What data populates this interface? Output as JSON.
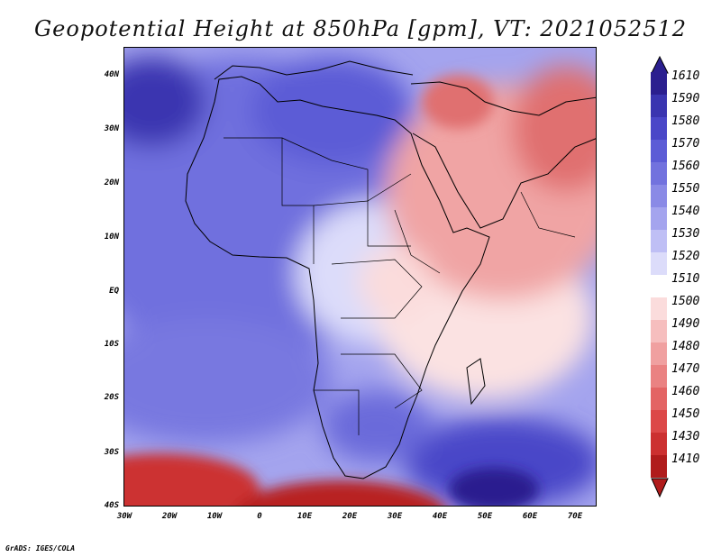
{
  "title": "Geopotential Height at 850hPa [gpm], VT: 2021052512",
  "footer": "GrADS: IGES/COLA",
  "map": {
    "lat_labels": [
      "40N",
      "30N",
      "20N",
      "10N",
      "EQ",
      "10S",
      "20S",
      "30S",
      "40S"
    ],
    "lon_labels": [
      "30W",
      "20W",
      "10W",
      "0",
      "10E",
      "20E",
      "30E",
      "40E",
      "50E",
      "60E",
      "70E"
    ],
    "domain": {
      "lon": [
        -30,
        75
      ],
      "lat": [
        -40,
        45
      ]
    }
  },
  "colorbar": {
    "labels": [
      "1610",
      "1590",
      "1580",
      "1570",
      "1560",
      "1550",
      "1540",
      "1530",
      "1520",
      "1510",
      "1500",
      "1490",
      "1480",
      "1470",
      "1460",
      "1450",
      "1430",
      "1410"
    ],
    "colors": [
      "#2b1f8f",
      "#3a35b0",
      "#4a47c8",
      "#5c5cd6",
      "#7272de",
      "#8a8ae6",
      "#a4a4ee",
      "#bfbff5",
      "#dcdcfa",
      "#ffffff",
      "#fbdcdc",
      "#f6bebe",
      "#f0a0a0",
      "#ea8282",
      "#e36464",
      "#dc4848",
      "#cc3030",
      "#b01c1c"
    ]
  }
}
